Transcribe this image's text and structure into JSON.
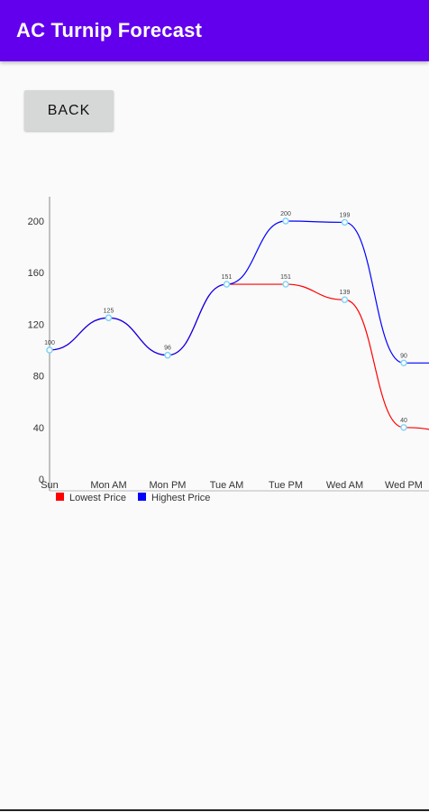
{
  "appbar": {
    "title": "AC Turnip Forecast",
    "color": "#6200ee"
  },
  "back_button": {
    "label": "BACK"
  },
  "chart_data": {
    "type": "line",
    "categories": [
      "Sun",
      "Mon AM",
      "Mon PM",
      "Tue AM",
      "Tue PM",
      "Wed AM",
      "Wed PM"
    ],
    "series": [
      {
        "name": "Lowest Price",
        "color": "#ff0000",
        "values": [
          100,
          125,
          96,
          151,
          151,
          139,
          40
        ]
      },
      {
        "name": "Highest Price",
        "color": "#0000ff",
        "values": [
          100,
          125,
          96,
          151,
          200,
          199,
          90
        ]
      }
    ],
    "data_labels": [
      "100",
      "125",
      "96",
      "151",
      "200",
      "199",
      "151",
      "139",
      "90",
      "40"
    ],
    "y_ticks": [
      "0",
      "40",
      "80",
      "120",
      "160",
      "200"
    ],
    "ylim": [
      0,
      220
    ],
    "legend_position": "bottom-left",
    "grid": false
  }
}
